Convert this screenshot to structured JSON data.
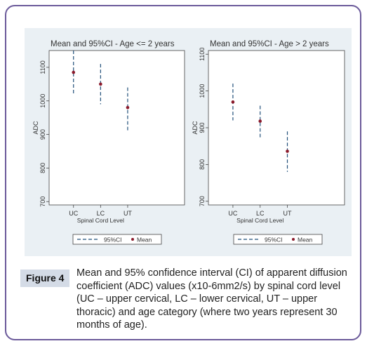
{
  "figure": {
    "label": "Figure 4",
    "caption": "Mean and 95% confidence interval (CI) of apparent diffusion coefficient (ADC) values (x10-6mm2/s) by spinal cord level (UC – upper cervical, LC – lower cervical, UT – upper thoracic) and age category (where two years represent 30 months of age)."
  },
  "colors": {
    "ci_line": "#1f4e79",
    "mean_marker": "#8b1a2b",
    "panel_bg": "#eaf0f4",
    "frame": "#6b5a9a"
  },
  "chart_data": [
    {
      "type": "scatter",
      "title": "Mean and 95%CI - Age <= 2 years",
      "xlabel": "Spinal Cord Level",
      "ylabel": "ADC",
      "categories": [
        "UC",
        "LC",
        "UT"
      ],
      "yticks": [
        700,
        800,
        900,
        1000,
        1100
      ],
      "ylim": [
        690,
        1150
      ],
      "series": [
        {
          "name": "Mean",
          "values": [
            1085,
            1050,
            980
          ]
        },
        {
          "name": "95%CI",
          "low": [
            1020,
            990,
            910
          ],
          "high": [
            1150,
            1110,
            1040
          ]
        }
      ],
      "legend": [
        "95%CI",
        "Mean"
      ],
      "legend_position": "bottom"
    },
    {
      "type": "scatter",
      "title": "Mean and 95%CI - Age > 2 years",
      "xlabel": "Spinal Cord Level",
      "ylabel": "ADC",
      "categories": [
        "UC",
        "LC",
        "UT"
      ],
      "yticks": [
        700,
        800,
        900,
        1000,
        1100
      ],
      "ylim": [
        690,
        1110
      ],
      "series": [
        {
          "name": "Mean",
          "values": [
            970,
            918,
            836
          ]
        },
        {
          "name": "95%CI",
          "low": [
            920,
            870,
            780
          ],
          "high": [
            1020,
            960,
            890
          ]
        }
      ],
      "legend": [
        "95%CI",
        "Mean"
      ],
      "legend_position": "bottom"
    }
  ]
}
